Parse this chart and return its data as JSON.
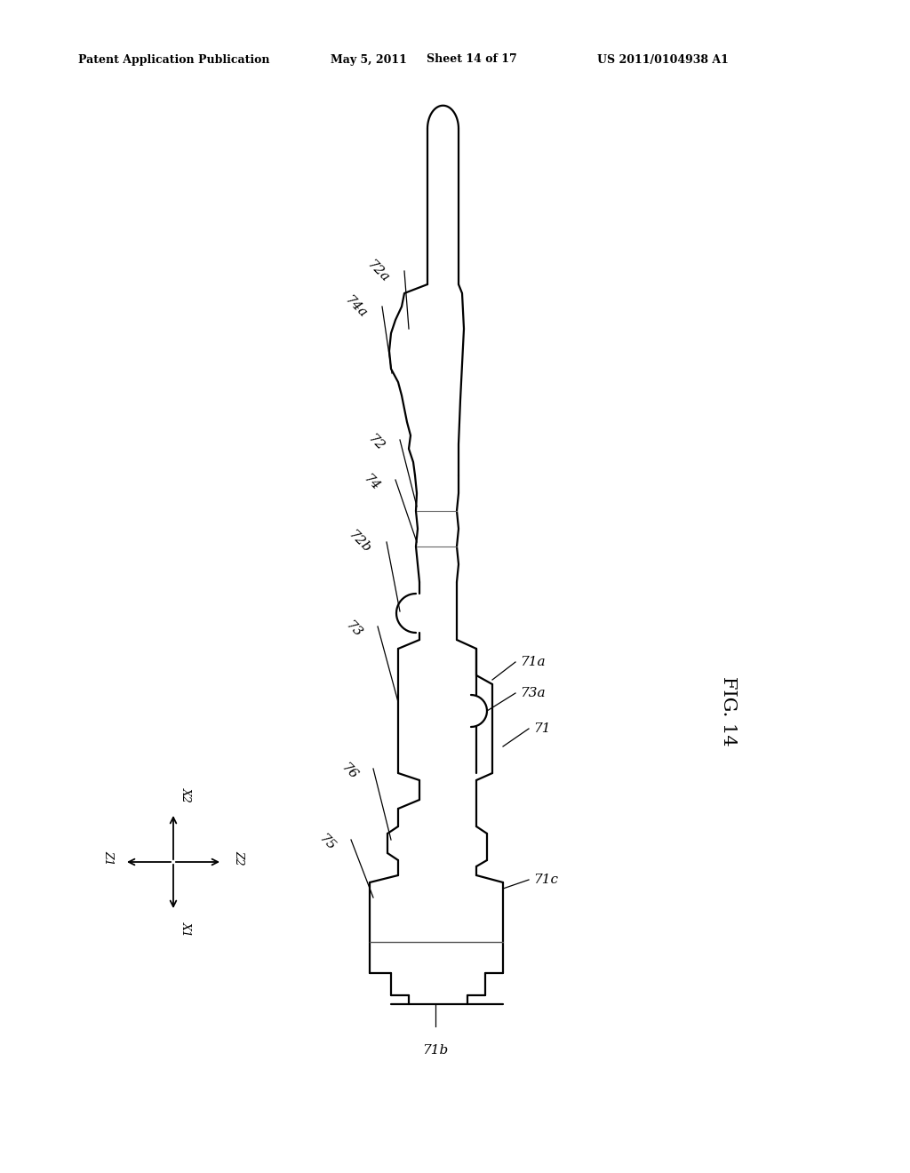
{
  "bg_color": "#ffffff",
  "header_text": "Patent Application Publication",
  "header_date": "May 5, 2011",
  "header_sheet": "Sheet 14 of 17",
  "header_patent": "US 2011/0104938 A1",
  "fig_label": "FIG. 14",
  "line_width": 1.6
}
